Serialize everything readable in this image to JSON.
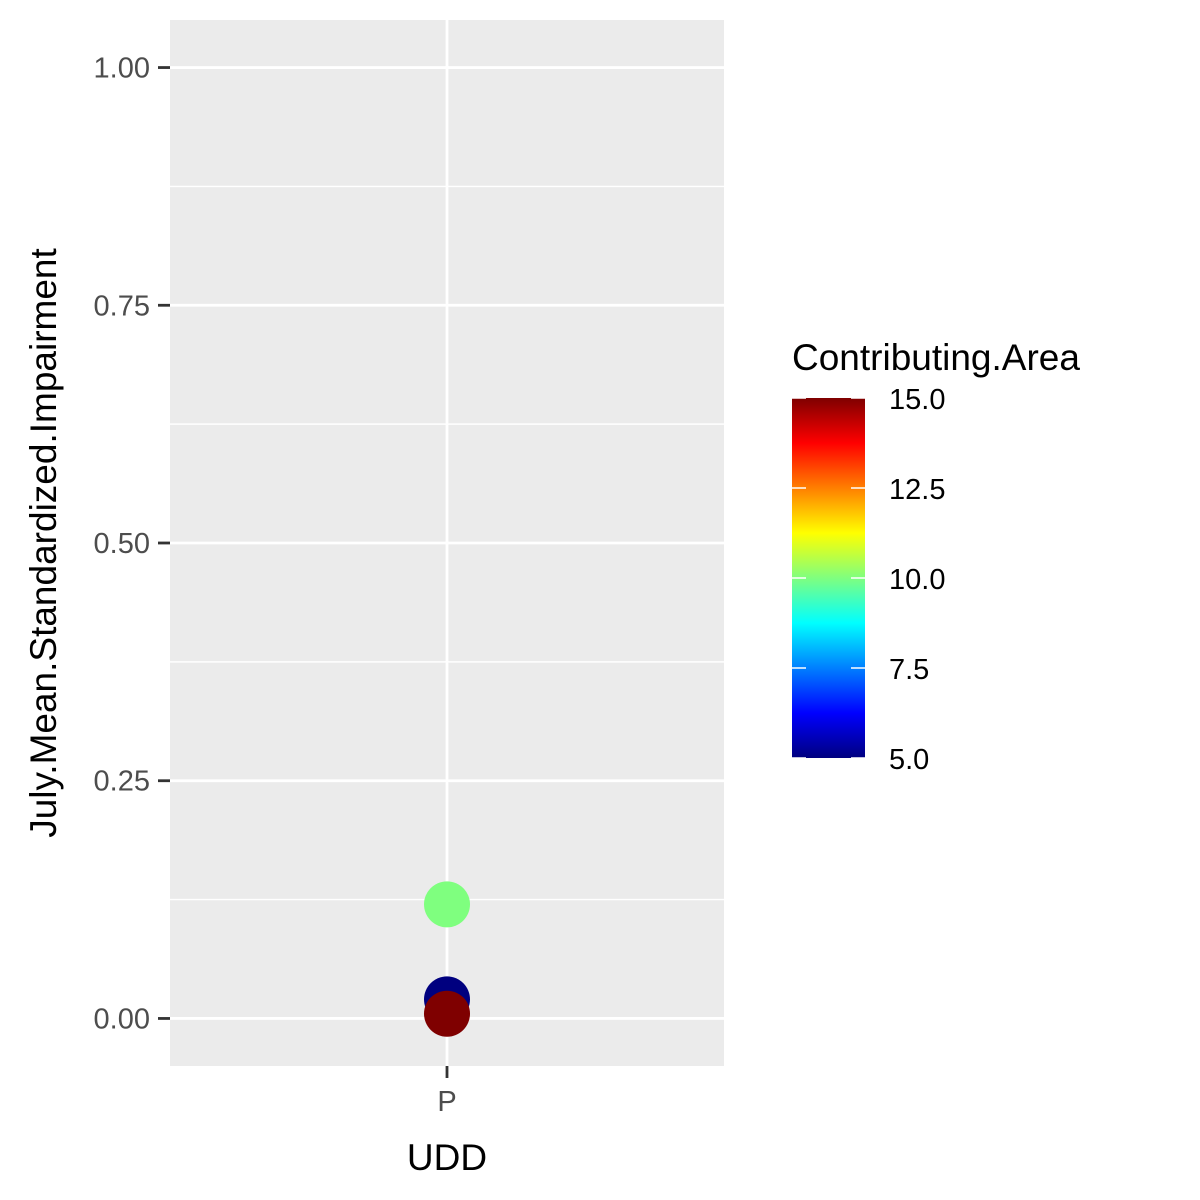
{
  "chart_data": {
    "type": "scatter",
    "title": "",
    "xlabel": "UDD",
    "ylabel": "July.Mean.Standardized.Impairment",
    "categories": [
      "P"
    ],
    "ylim": [
      -0.05,
      1.05
    ],
    "y_ticks": [
      "0.00",
      "0.25",
      "0.50",
      "0.75",
      "1.00"
    ],
    "y_tick_values": [
      0,
      0.25,
      0.5,
      0.75,
      1.0
    ],
    "points": [
      {
        "x": "P",
        "y": 0.12,
        "color_value": 10.0
      },
      {
        "x": "P",
        "y": 0.02,
        "color_value": 5.0
      },
      {
        "x": "P",
        "y": 0.005,
        "color_value": 15.0
      }
    ],
    "grid": true,
    "legend": {
      "title": "Contributing.Area",
      "placement": "right",
      "min": 5.0,
      "max": 15.0,
      "labels": [
        "15.0",
        "12.5",
        "10.0",
        "7.5",
        "5.0"
      ],
      "label_values": [
        15.0,
        12.5,
        10.0,
        7.5,
        5.0
      ],
      "colormap": "jet"
    },
    "colors": {
      "panel_background": "#ebebeb",
      "grid": "#ffffff"
    }
  }
}
